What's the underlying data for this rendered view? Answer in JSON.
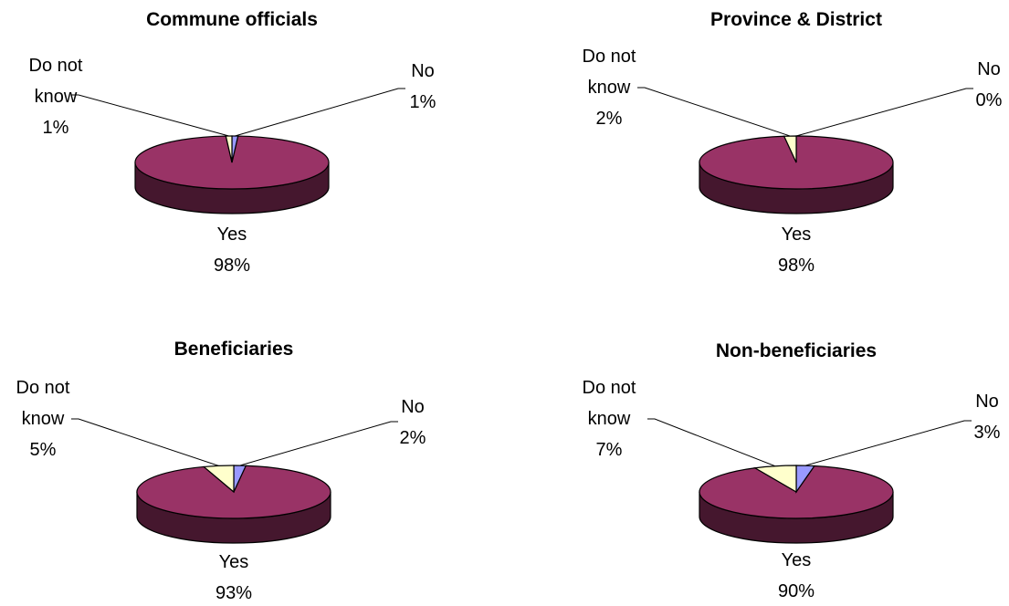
{
  "chart_data": [
    {
      "type": "pie",
      "title": "Commune officials",
      "slices": [
        {
          "label_lines": [
            "Yes"
          ],
          "percent_label": "98%",
          "value": 98,
          "color": "#993366"
        },
        {
          "label_lines": [
            "No"
          ],
          "percent_label": "1%",
          "value": 1,
          "color": "#9999ff"
        },
        {
          "label_lines": [
            "Do not",
            "know"
          ],
          "percent_label": "1%",
          "value": 1,
          "color": "#ffffcc"
        }
      ]
    },
    {
      "type": "pie",
      "title": "Province & District",
      "slices": [
        {
          "label_lines": [
            "Yes"
          ],
          "percent_label": "98%",
          "value": 98,
          "color": "#993366"
        },
        {
          "label_lines": [
            "No"
          ],
          "percent_label": "0%",
          "value": 0,
          "color": "#9999ff"
        },
        {
          "label_lines": [
            "Do not",
            "know"
          ],
          "percent_label": "2%",
          "value": 2,
          "color": "#ffffcc"
        }
      ]
    },
    {
      "type": "pie",
      "title": "Beneficiaries",
      "slices": [
        {
          "label_lines": [
            "Yes"
          ],
          "percent_label": "93%",
          "value": 93,
          "color": "#993366"
        },
        {
          "label_lines": [
            "No"
          ],
          "percent_label": "2%",
          "value": 2,
          "color": "#9999ff"
        },
        {
          "label_lines": [
            "Do not",
            "know"
          ],
          "percent_label": "5%",
          "value": 5,
          "color": "#ffffcc"
        }
      ]
    },
    {
      "type": "pie",
      "title": "Non-beneficiaries",
      "slices": [
        {
          "label_lines": [
            "Yes"
          ],
          "percent_label": "90%",
          "value": 90,
          "color": "#993366"
        },
        {
          "label_lines": [
            "No"
          ],
          "percent_label": "3%",
          "value": 3,
          "color": "#9999ff"
        },
        {
          "label_lines": [
            "Do not",
            "know"
          ],
          "percent_label": "7%",
          "value": 7,
          "color": "#ffffcc"
        }
      ]
    }
  ]
}
